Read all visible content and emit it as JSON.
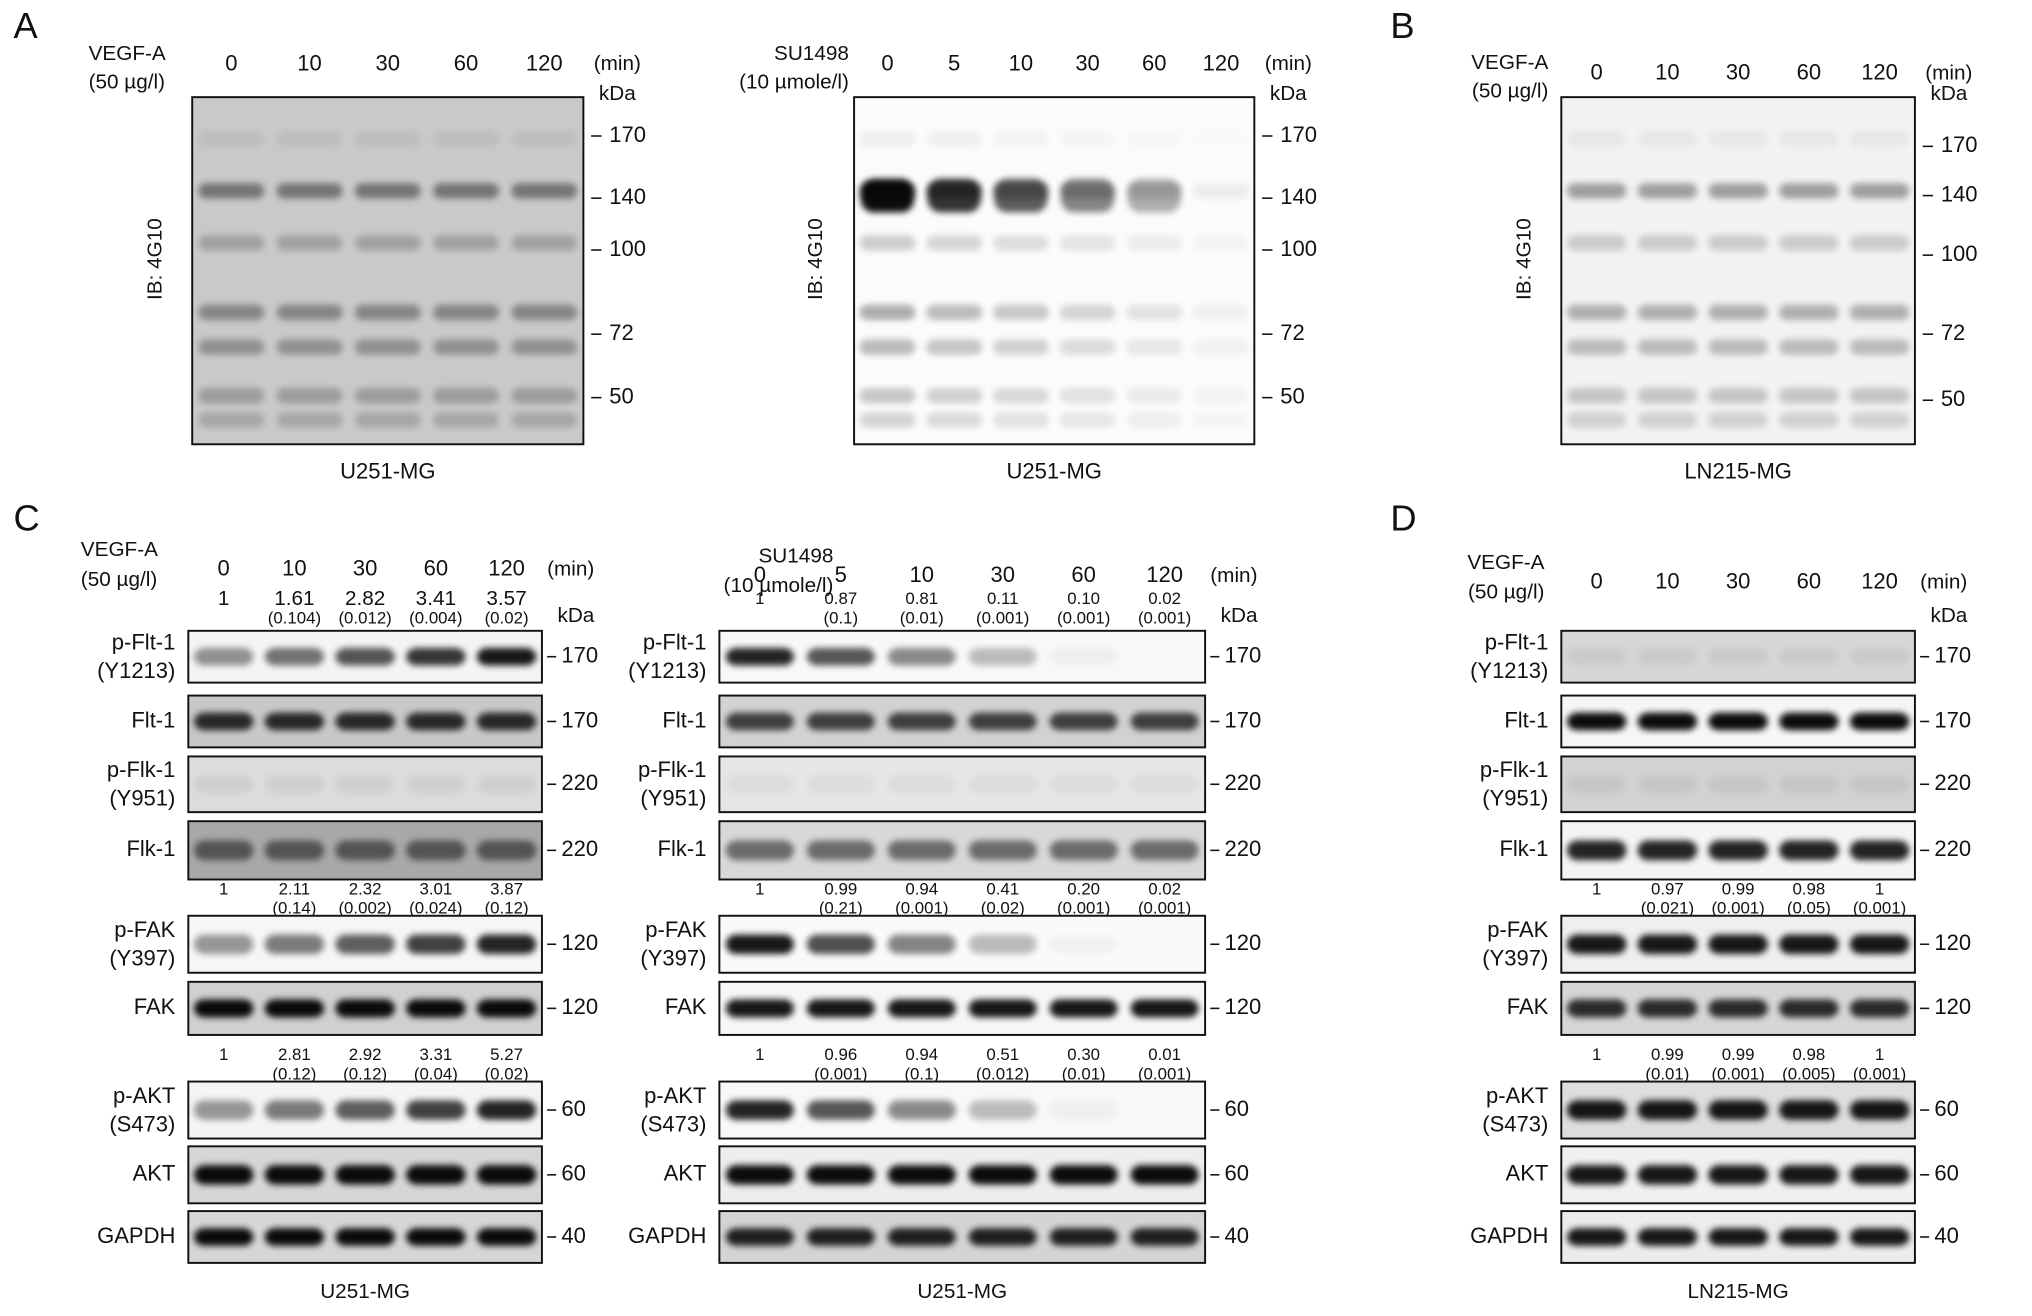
{
  "letters": [
    "A",
    "B",
    "C",
    "D"
  ],
  "top_blots": [
    {
      "treatment": [
        "VEGF-A",
        "(50 µg/l)"
      ],
      "times": [
        "0",
        "10",
        "30",
        "60",
        "120"
      ],
      "unit": "(min)",
      "kda": "kDa",
      "ylabel": "IB: 4G10",
      "markers": [
        "170",
        "140",
        "100",
        "72",
        "50"
      ],
      "cell_line": "U251-MG"
    },
    {
      "treatment": [
        "SU1498",
        "(10 µmole/l)"
      ],
      "times": [
        "0",
        "5",
        "10",
        "30",
        "60",
        "120"
      ],
      "unit": "(min)",
      "kda": "kDa",
      "ylabel": "IB: 4G10",
      "markers": [
        "170",
        "140",
        "100",
        "72",
        "50"
      ],
      "cell_line": "U251-MG"
    },
    {
      "treatment": [
        "VEGF-A",
        "(50 µg/l)"
      ],
      "times": [
        "0",
        "10",
        "30",
        "60",
        "120"
      ],
      "unit": "(min)",
      "kda": "kDa",
      "ylabel": "IB: 4G10",
      "markers": [
        "170",
        "140",
        "100",
        "72",
        "50"
      ],
      "cell_line": "LN215-MG"
    }
  ],
  "bottom_blots": [
    {
      "treatment": [
        "VEGF-A",
        "(50 µg/l)"
      ],
      "times": [
        "0",
        "10",
        "30",
        "60",
        "120"
      ],
      "unit": "(min)",
      "kda": "kDa",
      "cell_line": "U251-MG",
      "rows": [
        {
          "label": [
            "p-Flt-1",
            "(Y1213)"
          ],
          "marker": "170",
          "quant": {
            "values": [
              "1",
              "1.61",
              "2.82",
              "3.41",
              "3.57"
            ],
            "p": [
              null,
              "(0.104)",
              "(0.012)",
              "(0.004)",
              "(0.02)"
            ]
          }
        },
        {
          "label": [
            "Flt-1"
          ],
          "marker": "170"
        },
        {
          "label": [
            "p-Flk-1",
            "(Y951)"
          ],
          "marker": "220"
        },
        {
          "label": [
            "Flk-1"
          ],
          "marker": "220"
        },
        {
          "label": [
            "p-FAK",
            "(Y397)"
          ],
          "marker": "120",
          "quant": {
            "values": [
              "1",
              "2.11",
              "2.32",
              "3.01",
              "3.87"
            ],
            "p": [
              null,
              "(0.14)",
              "(0.002)",
              "(0.024)",
              "(0.12)"
            ]
          }
        },
        {
          "label": [
            "FAK"
          ],
          "marker": "120"
        },
        {
          "label": [
            "p-AKT",
            "(S473)"
          ],
          "marker": "60",
          "quant": {
            "values": [
              "1",
              "2.81",
              "2.92",
              "3.31",
              "5.27"
            ],
            "p": [
              null,
              "(0.12)",
              "(0.12)",
              "(0.04)",
              "(0.02)"
            ]
          }
        },
        {
          "label": [
            "AKT"
          ],
          "marker": "60"
        },
        {
          "label": [
            "GAPDH"
          ],
          "marker": "40"
        }
      ]
    },
    {
      "treatment": [
        "SU1498",
        "(10 µmole/l)"
      ],
      "times": [
        "0",
        "5",
        "10",
        "30",
        "60",
        "120"
      ],
      "unit": "(min)",
      "kda": "kDa",
      "cell_line": "U251-MG",
      "rows": [
        {
          "label": [
            "p-Flt-1",
            "(Y1213)"
          ],
          "marker": "170",
          "quant": {
            "values": [
              "1",
              "0.87",
              "0.81",
              "0.11",
              "0.10",
              "0.02"
            ],
            "p": [
              null,
              "(0.1)",
              "(0.01)",
              "(0.001)",
              "(0.001)",
              "(0.001)"
            ]
          }
        },
        {
          "label": [
            "Flt-1"
          ],
          "marker": "170"
        },
        {
          "label": [
            "p-Flk-1",
            "(Y951)"
          ],
          "marker": "220"
        },
        {
          "label": [
            "Flk-1"
          ],
          "marker": "220"
        },
        {
          "label": [
            "p-FAK",
            "(Y397)"
          ],
          "marker": "120",
          "quant": {
            "values": [
              "1",
              "0.99",
              "0.94",
              "0.41",
              "0.20",
              "0.02"
            ],
            "p": [
              null,
              "(0.21)",
              "(0.001)",
              "(0.02)",
              "(0.001)",
              "(0.001)"
            ]
          }
        },
        {
          "label": [
            "FAK"
          ],
          "marker": "120"
        },
        {
          "label": [
            "p-AKT",
            "(S473)"
          ],
          "marker": "60",
          "quant": {
            "values": [
              "1",
              "0.96",
              "0.94",
              "0.51",
              "0.30",
              "0.01"
            ],
            "p": [
              null,
              "(0.001)",
              "(0.1)",
              "(0.012)",
              "(0.01)",
              "(0.001)"
            ]
          }
        },
        {
          "label": [
            "AKT"
          ],
          "marker": "60"
        },
        {
          "label": [
            "GAPDH"
          ],
          "marker": "40"
        }
      ]
    },
    {
      "treatment": [
        "VEGF-A",
        "(50 µg/l)"
      ],
      "times": [
        "0",
        "10",
        "30",
        "60",
        "120"
      ],
      "unit": "(min)",
      "kda": "kDa",
      "cell_line": "LN215-MG",
      "rows": [
        {
          "label": [
            "p-Flt-1",
            "(Y1213)"
          ],
          "marker": "170"
        },
        {
          "label": [
            "Flt-1"
          ],
          "marker": "170"
        },
        {
          "label": [
            "p-Flk-1",
            "(Y951)"
          ],
          "marker": "220"
        },
        {
          "label": [
            "Flk-1"
          ],
          "marker": "220"
        },
        {
          "label": [
            "p-FAK",
            "(Y397)"
          ],
          "marker": "120",
          "quant": {
            "values": [
              "1",
              "0.97",
              "0.99",
              "0.98",
              "1"
            ],
            "p": [
              null,
              "(0.021)",
              "(0.001)",
              "(0.05)",
              "(0.001)"
            ]
          }
        },
        {
          "label": [
            "FAK"
          ],
          "marker": "120"
        },
        {
          "label": [
            "p-AKT",
            "(S473)"
          ],
          "marker": "60",
          "quant": {
            "values": [
              "1",
              "0.99",
              "0.99",
              "0.98",
              "1"
            ],
            "p": [
              null,
              "(0.01)",
              "(0.001)",
              "(0.005)",
              "(0.001)"
            ]
          }
        },
        {
          "label": [
            "AKT"
          ],
          "marker": "60"
        },
        {
          "label": [
            "GAPDH"
          ],
          "marker": "40"
        }
      ]
    }
  ]
}
